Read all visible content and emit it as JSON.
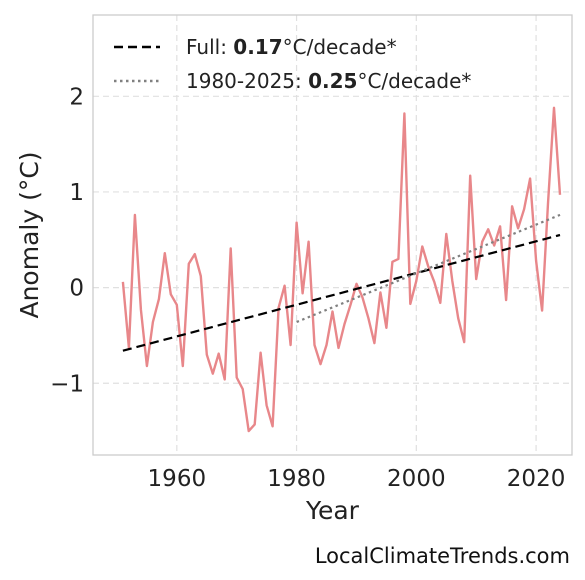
{
  "chart_data": {
    "type": "line",
    "title": "",
    "xlabel": "Year",
    "ylabel": "Anomaly (°C)",
    "xlim": [
      1946,
      2026
    ],
    "ylim": [
      -1.75,
      2.85
    ],
    "xticks": [
      1960,
      1980,
      2000,
      2020
    ],
    "yticks": [
      -1,
      0,
      1,
      2
    ],
    "ytick_labels": [
      "−1",
      "0",
      "1",
      "2"
    ],
    "grid": true,
    "legend_position": "top-left",
    "series": [
      {
        "color": "#e8878a",
        "style": "solid",
        "x": [
          1951,
          1952,
          1953,
          1954,
          1955,
          1956,
          1957,
          1958,
          1959,
          1960,
          1961,
          1962,
          1963,
          1964,
          1965,
          1966,
          1967,
          1968,
          1969,
          1970,
          1971,
          1972,
          1973,
          1974,
          1975,
          1976,
          1977,
          1978,
          1979,
          1980,
          1981,
          1982,
          1983,
          1984,
          1985,
          1986,
          1987,
          1988,
          1989,
          1990,
          1991,
          1992,
          1993,
          1994,
          1995,
          1996,
          1997,
          1998,
          1999,
          2000,
          2001,
          2002,
          2003,
          2004,
          2005,
          2006,
          2007,
          2008,
          2009,
          2010,
          2011,
          2012,
          2013,
          2014,
          2015,
          2016,
          2017,
          2018,
          2019,
          2020,
          2021,
          2022,
          2023,
          2024
        ],
        "values": [
          0.06,
          -0.63,
          0.76,
          -0.23,
          -0.82,
          -0.36,
          -0.12,
          0.36,
          -0.07,
          -0.18,
          -0.82,
          0.25,
          0.35,
          0.12,
          -0.7,
          -0.9,
          -0.69,
          -0.96,
          0.41,
          -0.94,
          -1.06,
          -1.5,
          -1.43,
          -0.68,
          -1.23,
          -1.45,
          -0.21,
          0.02,
          -0.6,
          0.68,
          -0.06,
          0.48,
          -0.6,
          -0.8,
          -0.6,
          -0.25,
          -0.63,
          -0.38,
          -0.18,
          0.04,
          -0.1,
          -0.32,
          -0.58,
          -0.05,
          -0.42,
          0.27,
          0.3,
          1.82,
          -0.17,
          0.07,
          0.43,
          0.22,
          0.06,
          -0.16,
          0.56,
          0.07,
          -0.32,
          -0.57,
          1.17,
          0.09,
          0.48,
          0.61,
          0.44,
          0.64,
          -0.13,
          0.85,
          0.62,
          0.82,
          1.14,
          0.28,
          -0.24,
          0.88,
          1.88,
          0.97
        ]
      },
      {
        "name": "Full",
        "color": "#000000",
        "style": "dashed",
        "x": [
          1951,
          2024
        ],
        "values": [
          -0.66,
          0.55
        ]
      },
      {
        "name": "1980-2025",
        "color": "#808080",
        "style": "dotted",
        "x": [
          1980,
          2024
        ],
        "values": [
          -0.36,
          0.76
        ]
      }
    ],
    "legend": [
      {
        "prefix": "Full: ",
        "value": "0.17",
        "suffix": "°C/decade*",
        "color": "#000000",
        "style": "dashed"
      },
      {
        "prefix": "1980-2025: ",
        "value": "0.25",
        "suffix": "°C/decade*",
        "color": "#808080",
        "style": "dotted"
      }
    ],
    "colors": {
      "frame": "#cccccc",
      "grid": "#e0e0e0"
    }
  },
  "watermark": "LocalClimateTrends.com"
}
